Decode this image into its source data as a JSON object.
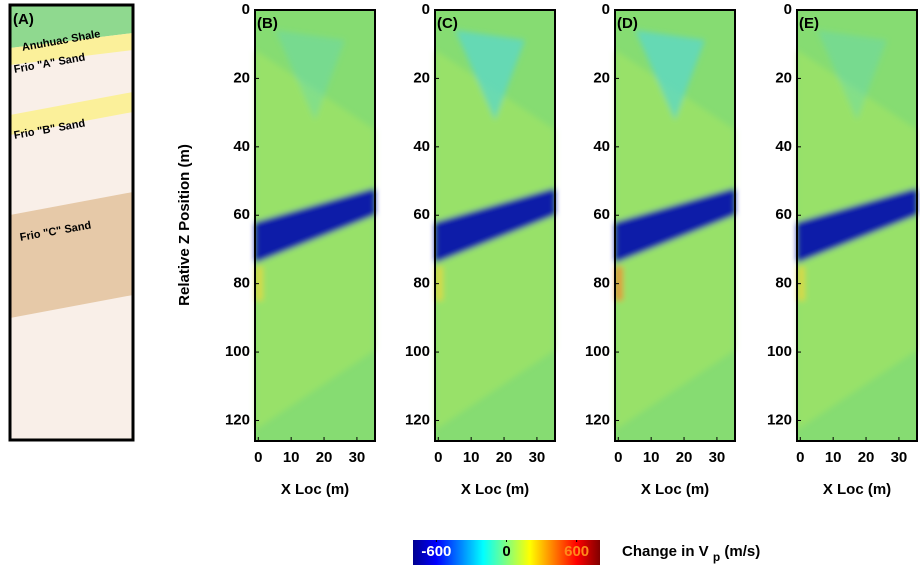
{
  "chart_data": {
    "type": "heatmap",
    "strat_column": {
      "label": "(A)",
      "layers": [
        "Anuhuac Shale",
        "Frio \"A\" Sand",
        "Frio \"B\" Sand",
        "Frio \"C\" Sand"
      ]
    },
    "panels": [
      "(B)",
      "(C)",
      "(D)",
      "(E)"
    ],
    "y_label": "Relative Z Position (m)",
    "x_label": "X Loc (m)",
    "ylim": [
      0,
      126
    ],
    "yticks": [
      0,
      20,
      40,
      60,
      80,
      100,
      120
    ],
    "xlim": [
      -1,
      35.5
    ],
    "xticks": [
      0,
      10,
      20,
      30
    ],
    "colorbar": {
      "clim": [
        -800,
        800
      ],
      "ticks": [
        -600,
        0,
        600
      ],
      "label": "Change in V",
      "subscript": "p",
      "unit": "(m/s)"
    }
  }
}
